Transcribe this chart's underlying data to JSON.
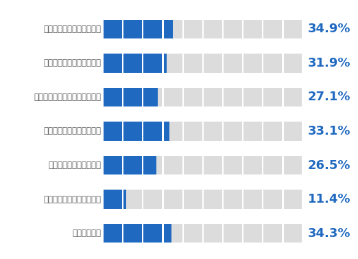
{
  "categories": [
    "マスクの調達に支障がある",
    "防護服の調達に支障がある",
    "アルコールの調達に支障がある",
    "ガウンの調達に支障がある",
    "手袋の調達に支障がある",
    "その他の物品で支障がある",
    "全く問題ない"
  ],
  "values": [
    34.9,
    31.9,
    27.1,
    33.1,
    26.5,
    11.4,
    34.3
  ],
  "n_squares": 10,
  "blue_color": "#1F69C0",
  "gray_color": "#DCDCDC",
  "white_sep": "#FFFFFF",
  "text_color": "#1F69C0",
  "label_color": "#555555",
  "bg_color": "#FFFFFF",
  "bar_height": 0.55,
  "label_fontsize": 8.5,
  "value_fontsize": 13
}
